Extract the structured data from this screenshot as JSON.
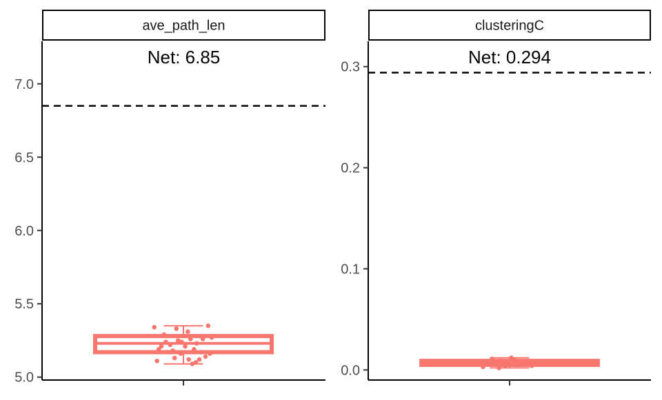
{
  "chart_data": [
    {
      "type": "boxplot",
      "facet_label": "ave_path_len",
      "annotation": "Net: 6.85",
      "reference_value": 6.85,
      "reference_style": "dashed",
      "ylim": [
        4.98,
        7.29
      ],
      "yticks": [
        5.0,
        5.5,
        6.0,
        6.5,
        7.0
      ],
      "ytick_labels": [
        "5.0",
        "5.5",
        "6.0",
        "6.5",
        "7.0"
      ],
      "box": {
        "whisker_low": 5.09,
        "q1": 5.17,
        "median": 5.23,
        "q3": 5.28,
        "whisker_high": 5.35
      },
      "color": "#f8766d",
      "points": [
        {
          "x": -0.33,
          "y": 5.34
        },
        {
          "x": -0.28,
          "y": 5.19
        },
        {
          "x": -0.3,
          "y": 5.11
        },
        {
          "x": -0.2,
          "y": 5.24
        },
        {
          "x": -0.15,
          "y": 5.22
        },
        {
          "x": -0.12,
          "y": 5.18
        },
        {
          "x": -0.1,
          "y": 5.13
        },
        {
          "x": -0.06,
          "y": 5.25
        },
        {
          "x": -0.03,
          "y": 5.16
        },
        {
          "x": 0.0,
          "y": 5.28
        },
        {
          "x": 0.02,
          "y": 5.21
        },
        {
          "x": 0.05,
          "y": 5.31
        },
        {
          "x": 0.08,
          "y": 5.26
        },
        {
          "x": 0.1,
          "y": 5.09
        },
        {
          "x": 0.12,
          "y": 5.19
        },
        {
          "x": 0.15,
          "y": 5.23
        },
        {
          "x": 0.18,
          "y": 5.12
        },
        {
          "x": 0.2,
          "y": 5.17
        },
        {
          "x": 0.22,
          "y": 5.26
        },
        {
          "x": 0.25,
          "y": 5.14
        },
        {
          "x": 0.28,
          "y": 5.35
        },
        {
          "x": -0.22,
          "y": 5.29
        },
        {
          "x": -0.25,
          "y": 5.21
        },
        {
          "x": 0.32,
          "y": 5.27
        },
        {
          "x": -0.18,
          "y": 5.17
        },
        {
          "x": 0.06,
          "y": 5.12
        },
        {
          "x": -0.08,
          "y": 5.33
        },
        {
          "x": 0.14,
          "y": 5.1
        },
        {
          "x": 0.3,
          "y": 5.16
        },
        {
          "x": -0.02,
          "y": 5.24
        }
      ]
    },
    {
      "type": "boxplot",
      "facet_label": "clusteringC",
      "annotation": "Net: 0.294",
      "reference_value": 0.294,
      "reference_style": "dashed",
      "ylim": [
        -0.01,
        0.325
      ],
      "yticks": [
        0.0,
        0.1,
        0.2,
        0.3
      ],
      "ytick_labels": [
        "0.0",
        "0.1",
        "0.2",
        "0.3"
      ],
      "box": {
        "whisker_low": 0.002,
        "q1": 0.005,
        "median": 0.007,
        "q3": 0.009,
        "whisker_high": 0.012
      },
      "color": "#f8766d",
      "points": [
        {
          "x": -0.3,
          "y": 0.003
        },
        {
          "x": -0.25,
          "y": 0.008
        },
        {
          "x": -0.2,
          "y": 0.011
        },
        {
          "x": -0.15,
          "y": 0.006
        },
        {
          "x": -0.1,
          "y": 0.009
        },
        {
          "x": -0.05,
          "y": 0.004
        },
        {
          "x": 0.0,
          "y": 0.007
        },
        {
          "x": 0.05,
          "y": 0.01
        },
        {
          "x": 0.1,
          "y": 0.005
        },
        {
          "x": 0.15,
          "y": 0.008
        },
        {
          "x": 0.2,
          "y": 0.006
        },
        {
          "x": 0.25,
          "y": 0.004
        },
        {
          "x": -0.28,
          "y": 0.006
        },
        {
          "x": 0.02,
          "y": 0.012
        },
        {
          "x": -0.12,
          "y": 0.002
        }
      ]
    }
  ]
}
